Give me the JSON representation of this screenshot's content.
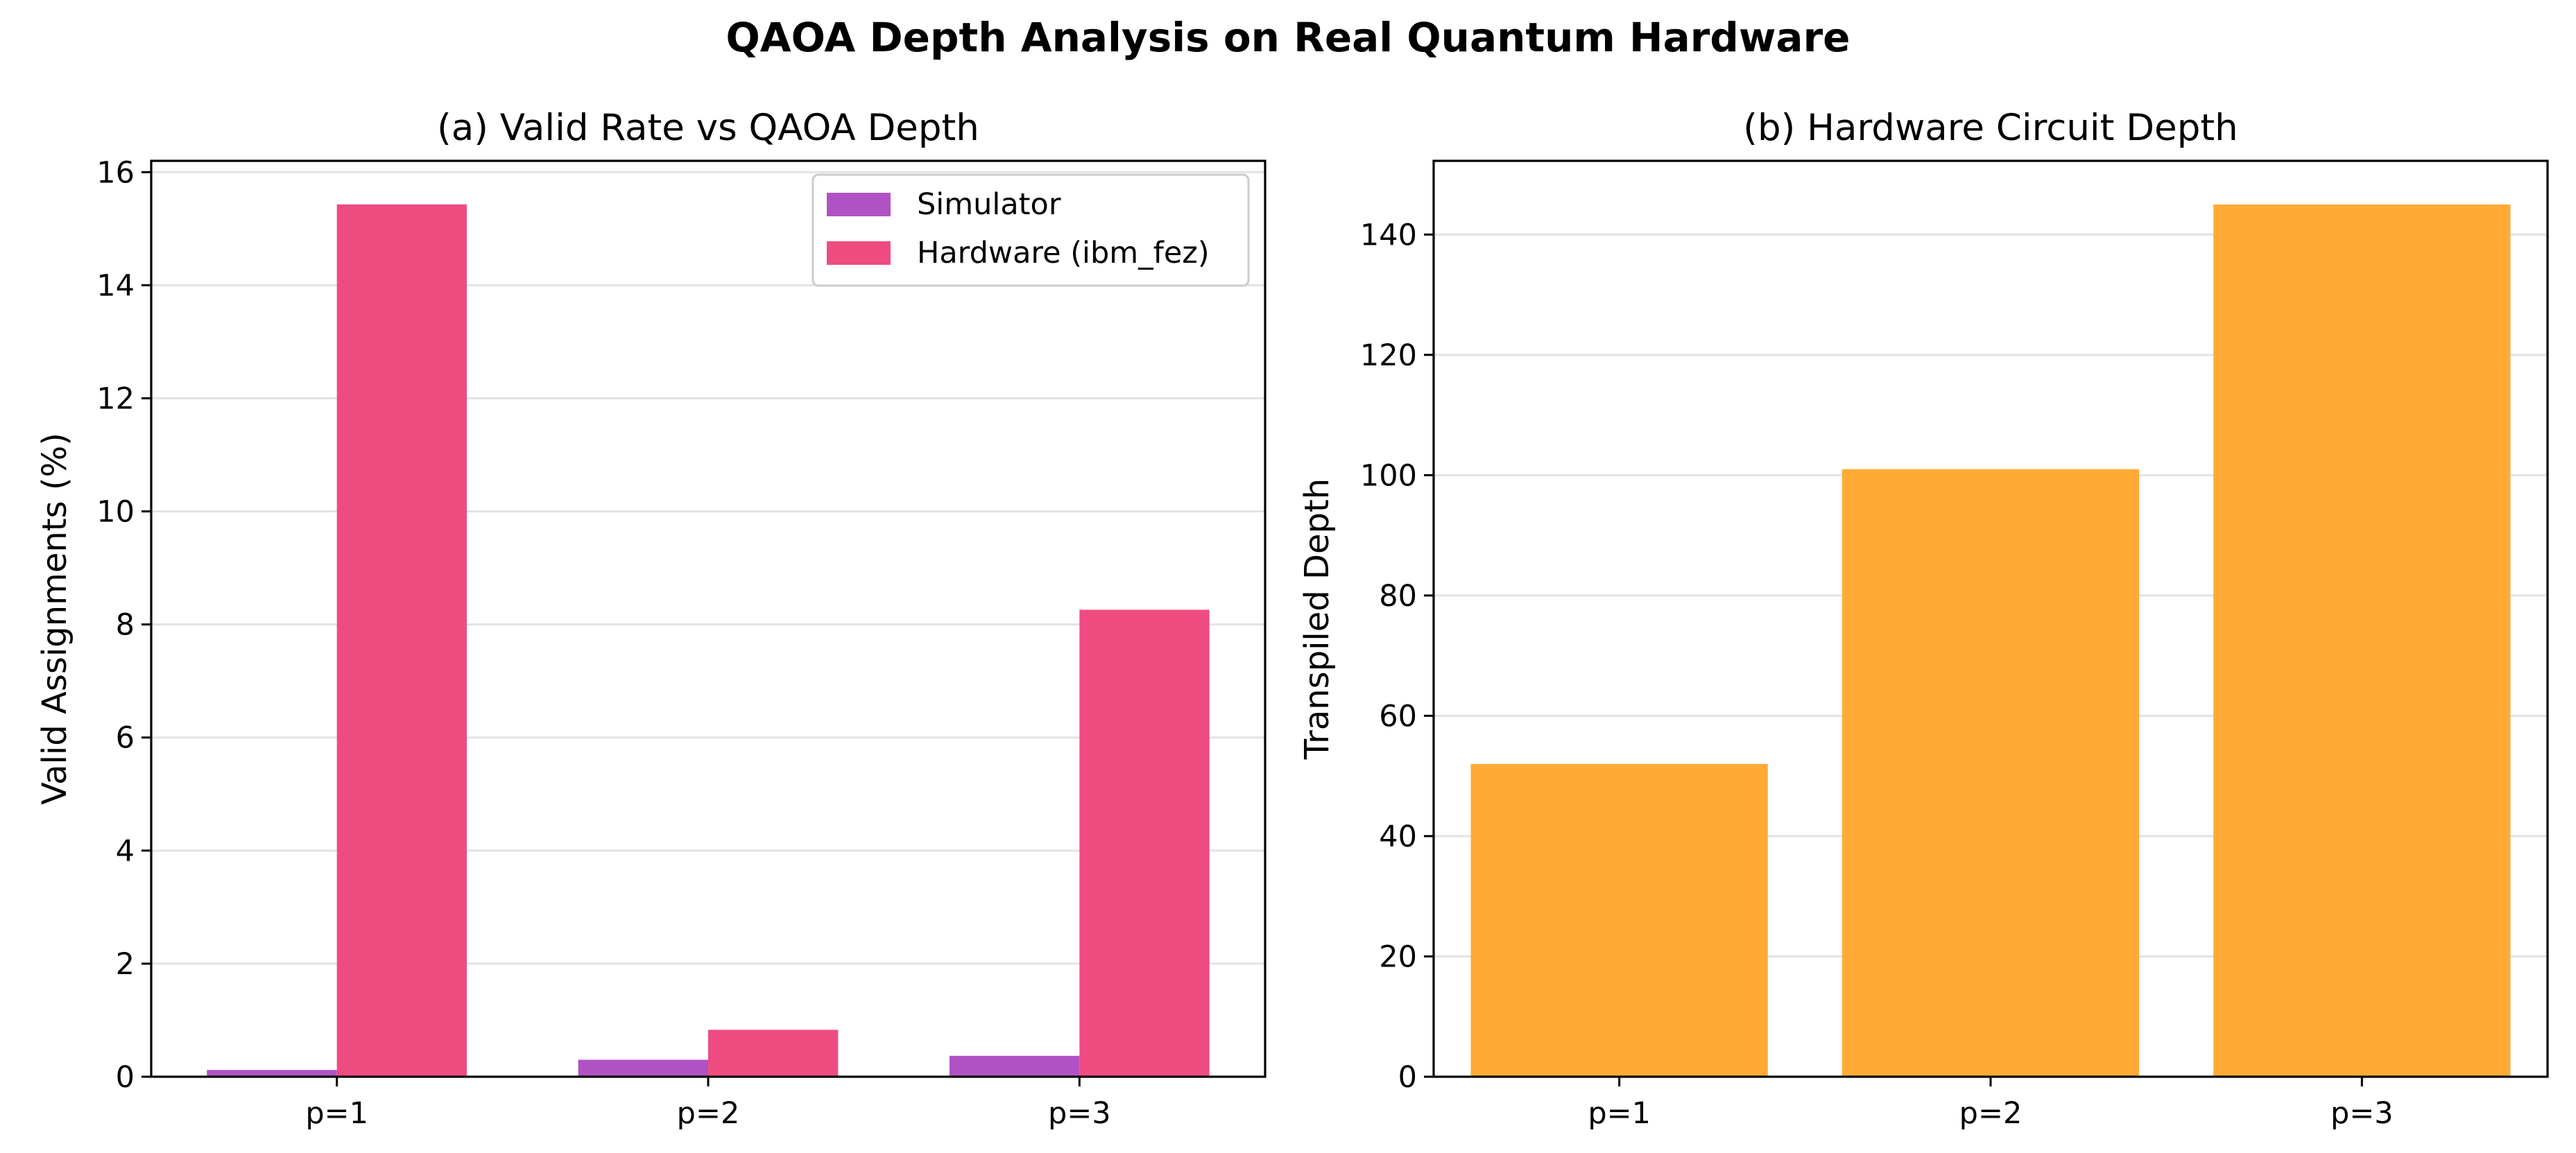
{
  "figure": {
    "title": "QAOA Depth Analysis on Real Quantum Hardware"
  },
  "colors": {
    "simulator": "#b152c4",
    "hardware": "#ee4c80",
    "depth": "#ffab36",
    "grid": "#e3e3e3",
    "axis": "#000000"
  },
  "chart_data": [
    {
      "type": "bar",
      "title": "(a) Valid Rate vs QAOA Depth",
      "xlabel": "",
      "ylabel": "Valid Assignments (%)",
      "categories": [
        "p=1",
        "p=2",
        "p=3"
      ],
      "series": [
        {
          "name": "Simulator",
          "values": [
            0.12,
            0.3,
            0.37
          ]
        },
        {
          "name": "Hardware (ibm_fez)",
          "values": [
            15.43,
            0.83,
            8.26
          ]
        }
      ],
      "ylim": [
        0,
        16.2
      ],
      "yticks": [
        0,
        2,
        4,
        6,
        8,
        10,
        12,
        14,
        16
      ],
      "grid": "y",
      "legend": "top-right"
    },
    {
      "type": "bar",
      "title": "(b) Hardware Circuit Depth",
      "xlabel": "",
      "ylabel": "Transpiled Depth",
      "categories": [
        "p=1",
        "p=2",
        "p=3"
      ],
      "values": [
        52,
        101,
        145
      ],
      "ylim": [
        0,
        152.25
      ],
      "yticks": [
        0,
        20,
        40,
        60,
        80,
        100,
        120,
        140
      ],
      "grid": "y"
    }
  ]
}
